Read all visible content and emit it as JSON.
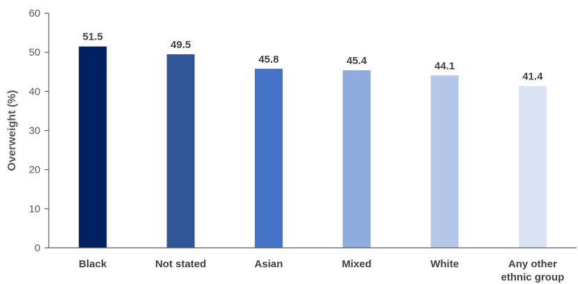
{
  "chart_data": {
    "type": "bar",
    "title": "",
    "xlabel": "",
    "ylabel": "Overweight (%)",
    "ylim": [
      0,
      60
    ],
    "yticks": [
      "0",
      "10",
      "20",
      "30",
      "40",
      "50",
      "60"
    ],
    "categories": [
      "Black",
      "Not stated",
      "Asian",
      "Mixed",
      "White",
      "Any other ethnic group"
    ],
    "category_lines": [
      [
        "Black"
      ],
      [
        "Not stated"
      ],
      [
        "Asian"
      ],
      [
        "Mixed"
      ],
      [
        "White"
      ],
      [
        "Any other",
        "ethnic group"
      ]
    ],
    "values": [
      51.5,
      49.5,
      45.8,
      45.4,
      44.1,
      41.4
    ],
    "value_labels": [
      "51.5",
      "49.5",
      "45.8",
      "45.4",
      "44.1",
      "41.4"
    ],
    "colors": [
      "#002060",
      "#2F5597",
      "#4472C4",
      "#8FAADC",
      "#B4C7E7",
      "#DAE3F3"
    ],
    "grid": false,
    "legend": "none"
  }
}
